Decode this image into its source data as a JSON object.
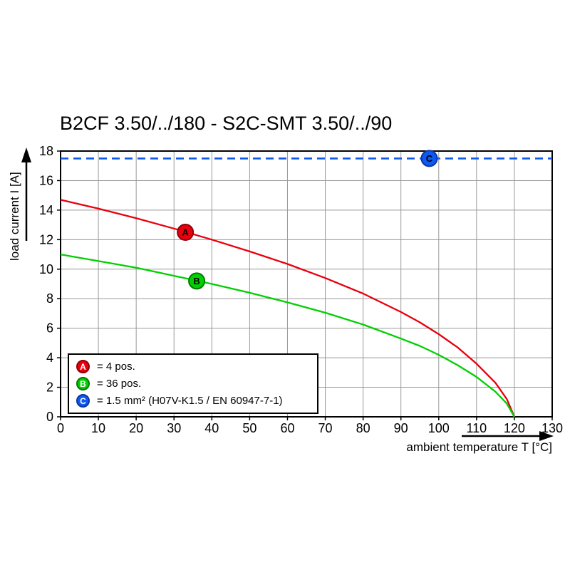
{
  "title": "B2CF 3.50/../180 - S2C-SMT 3.50/../90",
  "chart_data": {
    "type": "line",
    "title": "B2CF 3.50/../180 - S2C-SMT 3.50/../90",
    "xlabel": "ambient temperature T [°C]",
    "ylabel": "load current I [A]",
    "xlim": [
      0,
      130
    ],
    "ylim": [
      0,
      18
    ],
    "xticks": [
      0,
      10,
      20,
      30,
      40,
      50,
      60,
      70,
      80,
      90,
      100,
      110,
      120,
      130
    ],
    "yticks": [
      0,
      2,
      4,
      6,
      8,
      10,
      12,
      14,
      16,
      18
    ],
    "grid": true,
    "grid_color": "#999999",
    "axis_color": "#000000",
    "legend_position": "bottom-left-inside",
    "series": [
      {
        "id": "A",
        "legend_label": "= 4 pos.",
        "color": "#e8000d",
        "marker_stroke": "#8f0008",
        "line_style": "solid",
        "marker_at": [
          33,
          12.5
        ],
        "points": [
          [
            0,
            14.7
          ],
          [
            10,
            14.1
          ],
          [
            20,
            13.45
          ],
          [
            30,
            12.75
          ],
          [
            40,
            12.0
          ],
          [
            50,
            11.2
          ],
          [
            60,
            10.35
          ],
          [
            70,
            9.4
          ],
          [
            80,
            8.35
          ],
          [
            90,
            7.1
          ],
          [
            95,
            6.4
          ],
          [
            100,
            5.6
          ],
          [
            105,
            4.7
          ],
          [
            110,
            3.6
          ],
          [
            115,
            2.3
          ],
          [
            118,
            1.2
          ],
          [
            120,
            0
          ]
        ]
      },
      {
        "id": "B",
        "legend_label": "= 36 pos.",
        "color": "#00d000",
        "marker_stroke": "#007a00",
        "line_style": "solid",
        "marker_at": [
          36,
          9.2
        ],
        "points": [
          [
            0,
            11.0
          ],
          [
            10,
            10.55
          ],
          [
            20,
            10.1
          ],
          [
            30,
            9.55
          ],
          [
            40,
            9.0
          ],
          [
            50,
            8.4
          ],
          [
            60,
            7.75
          ],
          [
            70,
            7.05
          ],
          [
            80,
            6.25
          ],
          [
            90,
            5.3
          ],
          [
            95,
            4.8
          ],
          [
            100,
            4.2
          ],
          [
            105,
            3.5
          ],
          [
            110,
            2.7
          ],
          [
            115,
            1.7
          ],
          [
            118,
            0.9
          ],
          [
            120,
            0
          ]
        ]
      },
      {
        "id": "C",
        "legend_label": "= 1.5 mm² (H07V-K1.5 / EN 60947-7-1)",
        "color": "#0f59f2",
        "marker_stroke": "#0a36a0",
        "line_style": "dashed",
        "marker_at": [
          97.5,
          17.5
        ],
        "points": [
          [
            0,
            17.5
          ],
          [
            130,
            17.5
          ]
        ]
      }
    ]
  }
}
